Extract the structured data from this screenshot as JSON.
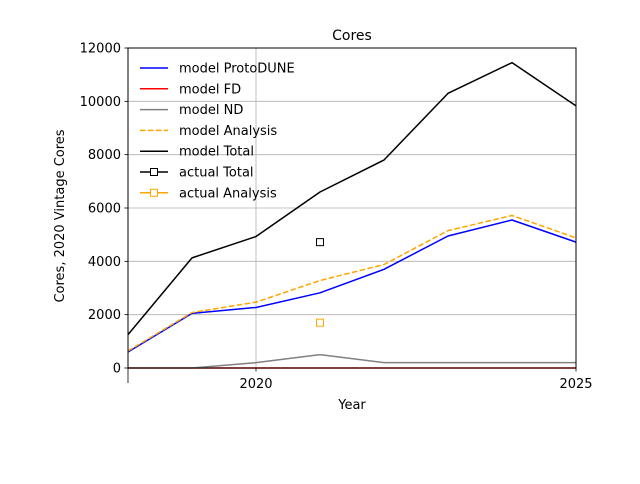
{
  "chart_data": {
    "type": "line",
    "title": "Cores",
    "xlabel": "Year",
    "ylabel": "Cores, 2020 Vintage Cores",
    "xlim": [
      2018,
      2025
    ],
    "ylim": [
      0,
      12000
    ],
    "x_ticks": [
      2020,
      2025
    ],
    "y_ticks": [
      0,
      2000,
      4000,
      6000,
      8000,
      10000,
      12000
    ],
    "grid": true,
    "legend_position": "upper-left",
    "x": [
      2018,
      2019,
      2020,
      2021,
      2022,
      2023,
      2024,
      2025
    ],
    "series": [
      {
        "name": "model ProtoDUNE",
        "color": "#0000ff",
        "style": "solid",
        "values": [
          600,
          2050,
          2270,
          2820,
          3700,
          4950,
          5550,
          4720
        ]
      },
      {
        "name": "model FD",
        "color": "#ff0000",
        "style": "solid",
        "values": [
          0,
          0,
          0,
          0,
          0,
          0,
          0,
          0
        ]
      },
      {
        "name": "model ND",
        "color": "#808080",
        "style": "solid",
        "values": [
          0,
          0,
          200,
          500,
          200,
          200,
          200,
          200
        ]
      },
      {
        "name": "model Analysis",
        "color": "#ffa500",
        "style": "dashed",
        "values": [
          640,
          2080,
          2470,
          3280,
          3880,
          5150,
          5720,
          4880
        ]
      },
      {
        "name": "model Total",
        "color": "#000000",
        "style": "solid",
        "values": [
          1250,
          4130,
          4930,
          6600,
          7800,
          10300,
          11450,
          9830
        ]
      }
    ],
    "points": [
      {
        "name": "actual Total",
        "color": "#000000",
        "marker": "square-open",
        "x": 2021,
        "y": 4720
      },
      {
        "name": "actual Analysis",
        "color": "#ffa500",
        "marker": "square-open",
        "x": 2021,
        "y": 1700
      }
    ]
  }
}
